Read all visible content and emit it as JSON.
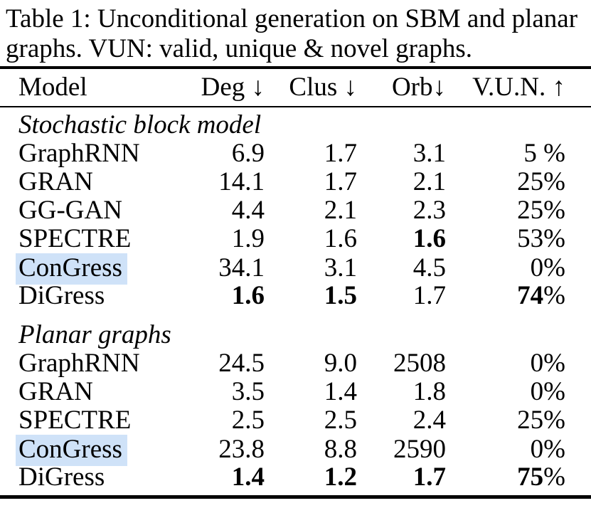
{
  "caption": {
    "line1": "Table 1: Unconditional generation on SBM and planar",
    "line2": "graphs. VUN: valid, unique & novel graphs."
  },
  "table": {
    "columns": [
      "Model",
      "Deg ↓",
      "Clus ↓",
      "Orb↓",
      "V.U.N. ↑"
    ],
    "highlight_color": "#cfe2f8",
    "sections": [
      {
        "name": "Stochastic block model",
        "rows": [
          {
            "model": "GraphRNN",
            "highlight": false,
            "cells": [
              [
                {
                  "t": "6.9",
                  "b": false
                }
              ],
              [
                {
                  "t": "1.7",
                  "b": false
                }
              ],
              [
                {
                  "t": "3.1",
                  "b": false
                }
              ],
              [
                {
                  "t": "5 %",
                  "b": false
                }
              ]
            ]
          },
          {
            "model": "GRAN",
            "highlight": false,
            "cells": [
              [
                {
                  "t": "14.1",
                  "b": false
                }
              ],
              [
                {
                  "t": "1.7",
                  "b": false
                }
              ],
              [
                {
                  "t": "2.1",
                  "b": false
                }
              ],
              [
                {
                  "t": "25%",
                  "b": false
                }
              ]
            ]
          },
          {
            "model": "GG-GAN",
            "highlight": false,
            "cells": [
              [
                {
                  "t": "4.4",
                  "b": false
                }
              ],
              [
                {
                  "t": "2.1",
                  "b": false
                }
              ],
              [
                {
                  "t": "2.3",
                  "b": false
                }
              ],
              [
                {
                  "t": "25%",
                  "b": false
                }
              ]
            ]
          },
          {
            "model": "SPECTRE",
            "highlight": false,
            "cells": [
              [
                {
                  "t": "1.9",
                  "b": false
                }
              ],
              [
                {
                  "t": "1.6",
                  "b": false
                }
              ],
              [
                {
                  "t": "1.6",
                  "b": true
                }
              ],
              [
                {
                  "t": "53%",
                  "b": false
                }
              ]
            ]
          },
          {
            "model": "ConGress",
            "highlight": true,
            "cells": [
              [
                {
                  "t": "34.1",
                  "b": false
                }
              ],
              [
                {
                  "t": "3.1",
                  "b": false
                }
              ],
              [
                {
                  "t": "4.5",
                  "b": false
                }
              ],
              [
                {
                  "t": "0%",
                  "b": false
                }
              ]
            ]
          },
          {
            "model": "DiGress",
            "highlight": false,
            "cells": [
              [
                {
                  "t": "1.6",
                  "b": true
                }
              ],
              [
                {
                  "t": "1.5",
                  "b": true
                }
              ],
              [
                {
                  "t": "1.7",
                  "b": false
                }
              ],
              [
                {
                  "t": "74",
                  "b": true
                },
                {
                  "t": "%",
                  "b": false
                }
              ]
            ]
          }
        ]
      },
      {
        "name": "Planar graphs",
        "rows": [
          {
            "model": "GraphRNN",
            "highlight": false,
            "cells": [
              [
                {
                  "t": "24.5",
                  "b": false
                }
              ],
              [
                {
                  "t": "9.0",
                  "b": false
                }
              ],
              [
                {
                  "t": "2508",
                  "b": false
                }
              ],
              [
                {
                  "t": "0%",
                  "b": false
                }
              ]
            ]
          },
          {
            "model": "GRAN",
            "highlight": false,
            "cells": [
              [
                {
                  "t": "3.5",
                  "b": false
                }
              ],
              [
                {
                  "t": "1.4",
                  "b": false
                }
              ],
              [
                {
                  "t": "1.8",
                  "b": false
                }
              ],
              [
                {
                  "t": "0%",
                  "b": false
                }
              ]
            ]
          },
          {
            "model": "SPECTRE",
            "highlight": false,
            "cells": [
              [
                {
                  "t": "2.5",
                  "b": false
                }
              ],
              [
                {
                  "t": "2.5",
                  "b": false
                }
              ],
              [
                {
                  "t": "2.4",
                  "b": false
                }
              ],
              [
                {
                  "t": "25%",
                  "b": false
                }
              ]
            ]
          },
          {
            "model": "ConGress",
            "highlight": true,
            "cells": [
              [
                {
                  "t": "23.8",
                  "b": false
                }
              ],
              [
                {
                  "t": "8.8",
                  "b": false
                }
              ],
              [
                {
                  "t": "2590",
                  "b": false
                }
              ],
              [
                {
                  "t": "0%",
                  "b": false
                }
              ]
            ]
          },
          {
            "model": "DiGress",
            "highlight": false,
            "cells": [
              [
                {
                  "t": "1.4",
                  "b": true
                }
              ],
              [
                {
                  "t": "1.2",
                  "b": true
                }
              ],
              [
                {
                  "t": "1.7",
                  "b": true
                }
              ],
              [
                {
                  "t": "75",
                  "b": true
                },
                {
                  "t": "%",
                  "b": false
                }
              ]
            ]
          }
        ]
      }
    ]
  }
}
